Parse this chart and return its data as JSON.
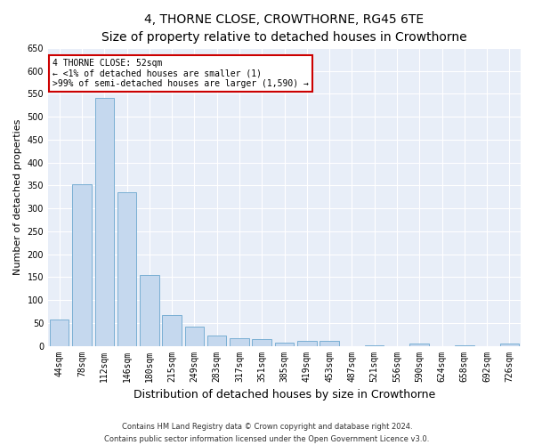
{
  "title": "4, THORNE CLOSE, CROWTHORNE, RG45 6TE",
  "subtitle": "Size of property relative to detached houses in Crowthorne",
  "xlabel": "Distribution of detached houses by size in Crowthorne",
  "ylabel": "Number of detached properties",
  "categories": [
    "44sqm",
    "78sqm",
    "112sqm",
    "146sqm",
    "180sqm",
    "215sqm",
    "249sqm",
    "283sqm",
    "317sqm",
    "351sqm",
    "385sqm",
    "419sqm",
    "453sqm",
    "487sqm",
    "521sqm",
    "556sqm",
    "590sqm",
    "624sqm",
    "658sqm",
    "692sqm",
    "726sqm"
  ],
  "values": [
    57,
    352,
    540,
    335,
    155,
    67,
    42,
    23,
    16,
    14,
    7,
    10,
    10,
    0,
    2,
    0,
    5,
    0,
    2,
    0,
    5
  ],
  "bar_color": "#c5d8ee",
  "bar_edge_color": "#7aafd4",
  "annotation_title": "4 THORNE CLOSE: 52sqm",
  "annotation_line1": "← <1% of detached houses are smaller (1)",
  "annotation_line2": ">99% of semi-detached houses are larger (1,590) →",
  "annotation_box_facecolor": "#ffffff",
  "annotation_box_edgecolor": "#cc0000",
  "ylim": [
    0,
    650
  ],
  "yticks": [
    0,
    50,
    100,
    150,
    200,
    250,
    300,
    350,
    400,
    450,
    500,
    550,
    600,
    650
  ],
  "footnote1": "Contains HM Land Registry data © Crown copyright and database right 2024.",
  "footnote2": "Contains public sector information licensed under the Open Government Licence v3.0.",
  "fig_bg_color": "#ffffff",
  "plot_bg_color": "#e8eef8",
  "grid_color": "#ffffff",
  "title_fontsize": 10,
  "subtitle_fontsize": 9,
  "ylabel_fontsize": 8,
  "xlabel_fontsize": 9,
  "tick_fontsize": 7,
  "annot_fontsize": 7,
  "footnote_fontsize": 6
}
